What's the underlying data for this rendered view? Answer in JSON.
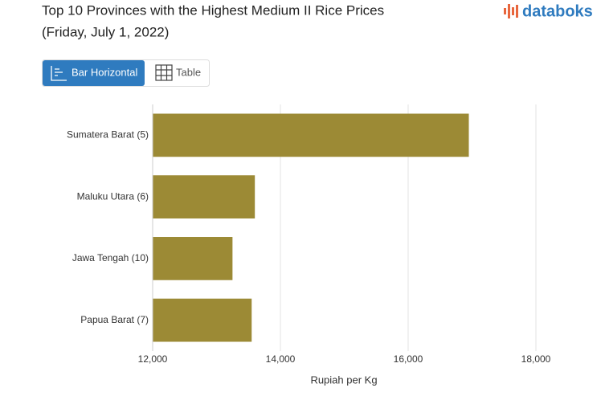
{
  "brand": "databoks",
  "ui": {
    "buttons": [
      "Bar Horizontal",
      "Table"
    ]
  },
  "chart_data": {
    "type": "bar",
    "orientation": "horizontal",
    "title": "Top 10 Provinces with the Highest Medium II Rice Prices",
    "subtitle": "(Friday, July 1, 2022)",
    "x_label": "Rupiah per Kg",
    "categories": [
      "Sumatera Barat (5)",
      "Maluku Utara (6)",
      "Jawa Tengah (10)",
      "Papua Barat (7)"
    ],
    "values": [
      16950,
      13600,
      13250,
      13550
    ],
    "color": "#9c8a35",
    "xlim": [
      12000,
      18000
    ],
    "xticks": [
      {
        "value": 12000,
        "label": "12,000"
      },
      {
        "value": 14000,
        "label": "14,000"
      },
      {
        "value": 16000,
        "label": "16,000"
      },
      {
        "value": 18000,
        "label": "18,000"
      }
    ],
    "grid": true
  }
}
